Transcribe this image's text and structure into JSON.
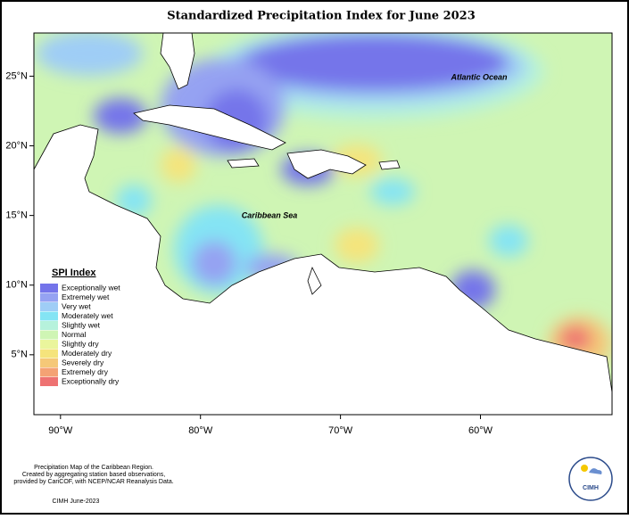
{
  "map": {
    "title": "Standardized Precipitation Index for June 2023",
    "xlim": [
      -91.9,
      -50.6
    ],
    "ylim": [
      0.7,
      28.1
    ],
    "xticks": [
      {
        "value": -90,
        "label": "90°W"
      },
      {
        "value": -80,
        "label": "80°W"
      },
      {
        "value": -70,
        "label": "70°W"
      },
      {
        "value": -60,
        "label": "60°W"
      }
    ],
    "yticks": [
      {
        "value": 5,
        "label": "5°N"
      },
      {
        "value": 10,
        "label": "10°N"
      },
      {
        "value": 15,
        "label": "15°N"
      },
      {
        "value": 20,
        "label": "20°N"
      },
      {
        "value": 25,
        "label": "25°N"
      }
    ],
    "annotations": [
      "Atlantic Ocean",
      "Caribbean Sea"
    ],
    "legend": {
      "title": "SPI Index",
      "items": [
        {
          "name": "Exceptionally wet",
          "color": "#7474ea"
        },
        {
          "name": "Extremely wet",
          "color": "#95a2f2"
        },
        {
          "name": "Very wet",
          "color": "#9fcdf6"
        },
        {
          "name": "Moderately wet",
          "color": "#84e4f4"
        },
        {
          "name": "Slightly wet",
          "color": "#b6f2dc"
        },
        {
          "name": "Normal",
          "color": "#cff5b4"
        },
        {
          "name": "Slightly dry",
          "color": "#eaf59c"
        },
        {
          "name": "Moderately dry",
          "color": "#f5e47c"
        },
        {
          "name": "Severely dry",
          "color": "#f5c878"
        },
        {
          "name": "Extremely dry",
          "color": "#f4a274"
        },
        {
          "name": "Exceptionally dry",
          "color": "#ee7272"
        }
      ]
    },
    "footer": [
      "Precipitation Map of the Caribbean Region.",
      "Created by aggregating station based observations,",
      "provided by CariCOF, with NCEP/NCAR Reanalysis Data."
    ],
    "credit": "CIMH June-2023",
    "logo": "CIMH"
  }
}
